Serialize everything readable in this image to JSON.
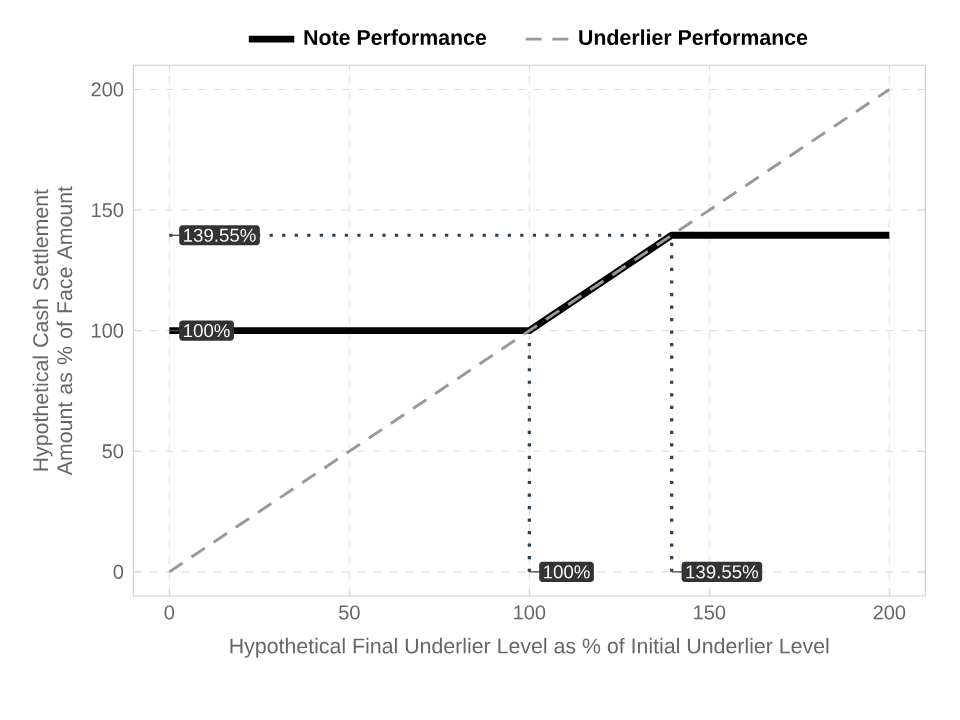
{
  "chart_data": {
    "type": "line",
    "xlabel": "Hypothetical Final Underlier Level as % of Initial Underlier Level",
    "ylabel": "Hypothetical Cash Settlement Amount as % of Face Amount",
    "xlim": [
      -10,
      210
    ],
    "ylim": [
      -10,
      210
    ],
    "xticks": [
      0,
      50,
      100,
      150,
      200
    ],
    "yticks": [
      0,
      50,
      100,
      150,
      200
    ],
    "grid": true,
    "legend": "top",
    "series": [
      {
        "x": [
          0,
          139.55
        ],
        "values": [
          139.55,
          139.55
        ],
        "color": "#2c3e50",
        "line_style": "dotted"
      },
      {
        "x": [
          100,
          100
        ],
        "values": [
          0,
          100
        ],
        "color": "#2c3e50",
        "line_style": "dotted"
      },
      {
        "x": [
          139.55,
          139.55
        ],
        "values": [
          0,
          139.55
        ],
        "color": "#2c3e50",
        "line_style": "dotted"
      },
      {
        "name": "Note Performance",
        "x": [
          0,
          100,
          139.55,
          200
        ],
        "values": [
          100,
          100,
          139.55,
          139.55
        ],
        "color": "#000000",
        "line_style": "solid"
      },
      {
        "name": "Underlier Performance",
        "x": [
          0,
          200
        ],
        "values": [
          0,
          200
        ],
        "color": "#999999",
        "line_style": "dashed"
      }
    ],
    "annotations": [
      {
        "text": "139.55%",
        "x": 0,
        "y": 139.55
      },
      {
        "text": "100%",
        "x": 0,
        "y": 100
      },
      {
        "text": "100%",
        "x": 100,
        "y": 0
      },
      {
        "text": "139.55%",
        "x": 139.55,
        "y": 0
      }
    ]
  }
}
